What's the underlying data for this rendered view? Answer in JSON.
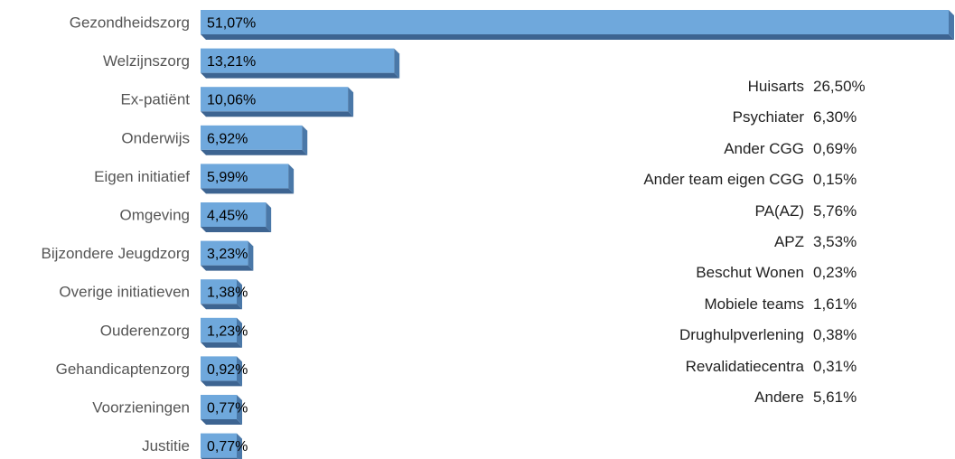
{
  "chart_data": {
    "type": "bar",
    "orientation": "horizontal",
    "categories": [
      "Gezondheidszorg",
      "Welzijnszorg",
      "Ex-patiënt",
      "Onderwijs",
      "Eigen initiatief",
      "Omgeving",
      "Bijzondere Jeugdzorg",
      "Overige initiatieven",
      "Ouderenzorg",
      "Gehandicaptenzorg",
      "Voorzieningen",
      "Justitie"
    ],
    "values": [
      51.07,
      13.21,
      10.06,
      6.92,
      5.99,
      4.45,
      3.23,
      1.38,
      1.23,
      0.92,
      0.77,
      0.77
    ],
    "value_labels": [
      "51,07%",
      "13,21%",
      "10,06%",
      "6,92%",
      "5,99%",
      "4,45%",
      "3,23%",
      "1,38%",
      "1,23%",
      "0,92%",
      "0,77%",
      "0,77%"
    ],
    "xlim": [
      0,
      51.07
    ],
    "grid": false,
    "colors": {
      "bar_front": "#6fa8dc",
      "bar_side": "#4a78a8",
      "bar_bottom": "#3d6491"
    }
  },
  "breakdown": {
    "parent_category": "Gezondheidszorg",
    "items": [
      {
        "name": "Huisarts",
        "value": "26,50%"
      },
      {
        "name": "Psychiater",
        "value": "6,30%"
      },
      {
        "name": "Ander CGG",
        "value": "0,69%"
      },
      {
        "name": "Ander team eigen CGG",
        "value": "0,15%"
      },
      {
        "name": "PA(AZ)",
        "value": "5,76%"
      },
      {
        "name": "APZ",
        "value": "3,53%"
      },
      {
        "name": "Beschut Wonen",
        "value": "0,23%"
      },
      {
        "name": "Mobiele teams",
        "value": "1,61%"
      },
      {
        "name": "Drughulpverlening",
        "value": "0,38%"
      },
      {
        "name": "Revalidatiecentra",
        "value": "0,31%"
      },
      {
        "name": "Andere",
        "value": "5,61%"
      }
    ]
  }
}
